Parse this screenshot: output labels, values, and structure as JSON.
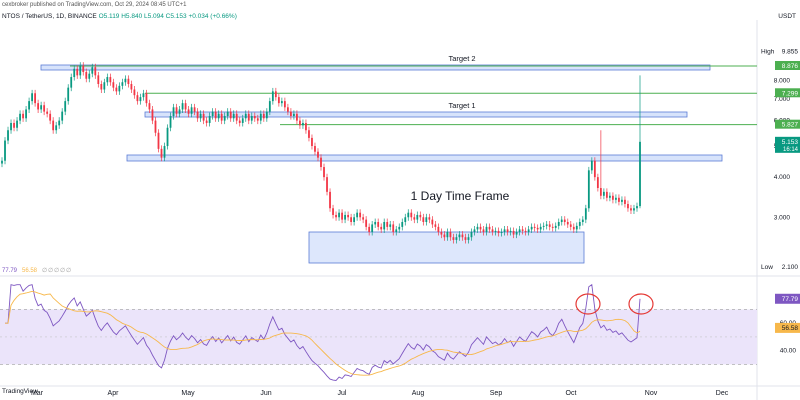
{
  "header": {
    "publisher": "cexbroker published on TradingView.com, Oct 29, 2024 08:45 UTC+1",
    "symbol": "NTOS / TetherUS, 1D, BINANCE",
    "ohlc": "O5.119 H5.840 L5.094 C5.153 +0.034 (+0.66%)",
    "currency": "USDT"
  },
  "footer": {
    "brand": "TradingView"
  },
  "chart_data": [
    {
      "type": "candlestick",
      "title": "",
      "annotation": "1 Day Time Frame",
      "yscale": "log",
      "ylim": [
        2.0,
        10.2
      ],
      "y_ticks": [
        3.0,
        4.0,
        5.0,
        6.0,
        7.0,
        8.0
      ],
      "y_tick_labels": [
        "3.000",
        "4.000",
        "5.000",
        "6.000",
        "7.000",
        "8.000"
      ],
      "x_tick_labels": [
        "Mar",
        "Apr",
        "May",
        "Jun",
        "Jul",
        "Aug",
        "Sep",
        "Oct",
        "Nov",
        "Dec"
      ],
      "high": {
        "label": "High",
        "value": "9.855"
      },
      "low": {
        "label": "Low",
        "value": "2.100"
      },
      "price_tags": [
        {
          "value": 8.876,
          "label": "8.876",
          "color": "#4caf50"
        },
        {
          "value": 7.299,
          "label": "7.299",
          "color": "#4caf50"
        },
        {
          "value": 5.827,
          "label": "5.827",
          "color": "#4caf50"
        },
        {
          "value": 5.153,
          "label": "5.153",
          "sub": "16:14",
          "color": "#089981"
        }
      ],
      "targets": [
        {
          "label": "Target 2",
          "value": 8.876
        },
        {
          "label": "Target 1",
          "value": 7.299
        }
      ],
      "ohlc_closes": [
        4.5,
        5.2,
        5.6,
        5.9,
        5.7,
        6.0,
        6.3,
        6.1,
        6.5,
        6.9,
        7.3,
        6.8,
        6.5,
        6.7,
        6.4,
        6.3,
        6.0,
        5.6,
        5.8,
        6.0,
        6.4,
        6.9,
        7.6,
        8.2,
        8.7,
        8.3,
        8.9,
        8.5,
        8.1,
        8.4,
        8.8,
        8.3,
        7.8,
        7.5,
        7.9,
        8.2,
        7.9,
        7.6,
        7.4,
        7.7,
        7.9,
        8.1,
        7.8,
        7.5,
        7.2,
        6.9,
        7.1,
        7.3,
        6.8,
        6.5,
        6.0,
        5.5,
        4.9,
        4.6,
        5.0,
        5.7,
        6.2,
        6.6,
        6.3,
        6.5,
        6.8,
        6.5,
        6.3,
        6.6,
        6.4,
        6.1,
        6.3,
        6.0,
        5.9,
        6.2,
        6.4,
        6.1,
        6.3,
        6.0,
        6.2,
        6.4,
        6.1,
        6.3,
        6.0,
        5.9,
        6.1,
        6.3,
        6.0,
        6.2,
        6.1,
        6.0,
        6.3,
        6.1,
        6.4,
        6.9,
        7.4,
        7.1,
        6.8,
        6.9,
        6.6,
        6.4,
        6.2,
        6.3,
        6.0,
        5.8,
        5.9,
        5.6,
        5.3,
        5.0,
        4.8,
        4.6,
        4.3,
        4.0,
        3.6,
        3.2,
        3.05,
        3.0,
        3.1,
        2.95,
        3.05,
        3.0,
        2.9,
        3.0,
        3.1,
        3.0,
        2.95,
        2.8,
        2.7,
        2.85,
        2.9,
        2.8,
        2.75,
        2.9,
        2.8,
        2.85,
        2.7,
        2.75,
        2.8,
        2.9,
        3.0,
        3.1,
        3.0,
        2.95,
        3.05,
        3.0,
        2.9,
        3.0,
        2.95,
        2.85,
        2.8,
        2.7,
        2.65,
        2.6,
        2.7,
        2.6,
        2.55,
        2.6,
        2.65,
        2.6,
        2.55,
        2.6,
        2.7,
        2.75,
        2.8,
        2.75,
        2.7,
        2.8,
        2.75,
        2.7,
        2.72,
        2.68,
        2.7,
        2.75,
        2.7,
        2.72,
        2.65,
        2.7,
        2.75,
        2.72,
        2.7,
        2.75,
        2.8,
        2.78,
        2.75,
        2.8,
        2.82,
        2.85,
        2.8,
        2.78,
        2.82,
        2.9,
        2.95,
        2.9,
        2.85,
        2.8,
        2.75,
        2.82,
        2.9,
        2.95,
        3.2,
        4.2,
        4.5,
        4.0,
        3.7,
        3.5,
        3.6,
        3.45,
        3.5,
        3.4,
        3.45,
        3.35,
        3.4,
        3.3,
        3.2,
        3.15,
        3.2,
        3.25,
        5.153
      ],
      "rsi": {
        "label": "RSI",
        "value": "77.79",
        "ma_value": "56.58",
        "ylim": [
          15,
          90
        ],
        "y_ticks": [
          40,
          60
        ],
        "y_tick_labels": [
          "40.00",
          "60.00"
        ],
        "header": [
          "77.79",
          "56.58"
        ],
        "band": [
          30,
          70
        ]
      }
    }
  ],
  "colors": {
    "up": "#089981",
    "down": "#f23645",
    "zone_fill": "#d7e3fb",
    "zone_stroke": "#5b7bd5",
    "target_line": "#4caf50",
    "rsi_line": "#7e57c2",
    "rsi_ma": "#f7b84b",
    "rsi_band": "#ebe4fa",
    "circle": "#e53935"
  }
}
